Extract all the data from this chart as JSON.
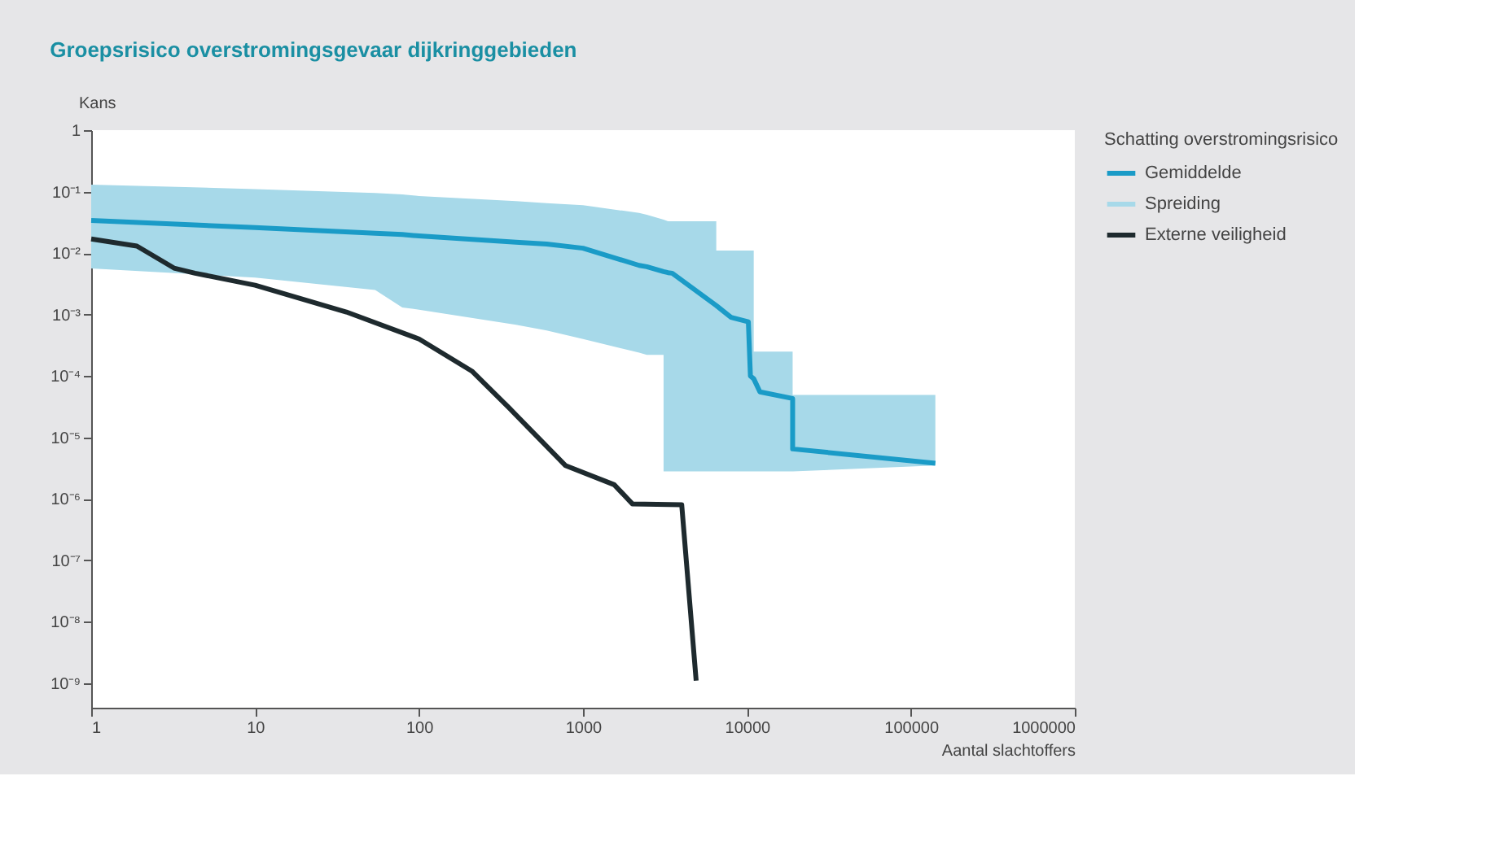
{
  "chart_data": {
    "type": "line",
    "title": "Groepsrisico overstromingsgevaar dijkringgebieden",
    "xlabel": "Aantal slachtoffers",
    "ylabel": "Kans",
    "legend_title": "Schatting overstromingsrisico",
    "legend": "right",
    "annotations": [
      "Spreiding"
    ],
    "log": "xy",
    "xlim": [
      1,
      1000000
    ],
    "xticks": [
      1,
      10,
      100,
      1000,
      10000,
      100000,
      1000000
    ],
    "ylim": [
      4e-10,
      1
    ],
    "yticks": [
      1,
      {
        "value": 0.1,
        "label": "10⁻¹"
      },
      {
        "value": 0.01,
        "label": "10⁻²"
      },
      {
        "value": 0.001,
        "label": "10⁻³"
      },
      {
        "value": 0.0001,
        "label": "10⁻⁴"
      },
      {
        "value": 1e-05,
        "label": "10⁻⁵"
      },
      {
        "value": 1e-06,
        "label": "10⁻⁶"
      },
      {
        "value": 1e-07,
        "label": "10⁻⁷"
      },
      {
        "value": 1e-08,
        "label": "10⁻⁸"
      },
      {
        "value": 1e-09,
        "label": "10⁻⁹"
      }
    ],
    "series": [
      {
        "name": "Gemiddelde",
        "color": "#1a9bc7",
        "x": [
          1,
          10,
          54,
          79,
          100,
          390,
          600,
          1000,
          2200,
          2450,
          3100,
          3100,
          3300,
          3500,
          6500,
          6500,
          8000,
          10200,
          10500,
          11000,
          11000,
          12000,
          19000,
          19000,
          141000
        ],
        "values": [
          0.034,
          0.026,
          0.021,
          0.02,
          0.019,
          0.015,
          0.014,
          0.012,
          0.0063,
          0.006,
          0.005,
          0.005,
          0.0048,
          0.0047,
          0.0014,
          0.0014,
          0.0009,
          0.00076,
          0.0001,
          9e-05,
          9e-05,
          5.5e-05,
          4.3e-05,
          6.5e-06,
          3.8e-06
        ],
        "lower": [
          0.0056,
          0.004,
          0.0025,
          0.0013,
          0.0012,
          0.00068,
          0.00055,
          0.0004,
          0.00024,
          0.00022,
          0.00022,
          2.8e-06,
          2.8e-06,
          2.8e-06,
          2.8e-06,
          2.8e-06,
          2.8e-06,
          2.8e-06,
          2.8e-06,
          2.8e-06,
          2.8e-06,
          2.8e-06,
          2.8e-06,
          2.8e-06,
          3.5e-06
        ],
        "upper": [
          0.13,
          0.11,
          0.095,
          0.09,
          0.085,
          0.07,
          0.065,
          0.06,
          0.045,
          0.042,
          0.035,
          0.035,
          0.033,
          0.033,
          0.033,
          0.011,
          0.011,
          0.011,
          0.011,
          0.011,
          0.00025,
          0.00025,
          0.00025,
          4.9e-05,
          4.9e-05
        ]
      },
      {
        "name": "Externe veiligheid",
        "color": "#1e2a2e",
        "x": [
          1,
          1.9,
          3.2,
          4.3,
          10,
          36,
          100,
          210,
          355,
          780,
          1550,
          2000,
          4000,
          4900
        ],
        "values": [
          0.017,
          0.013,
          0.0057,
          0.0047,
          0.003,
          0.0011,
          0.0004,
          0.00012,
          3e-05,
          3.5e-06,
          1.7e-06,
          8.3e-07,
          8e-07,
          1.1e-09
        ]
      }
    ],
    "marker": "none",
    "line_style": "solid"
  }
}
